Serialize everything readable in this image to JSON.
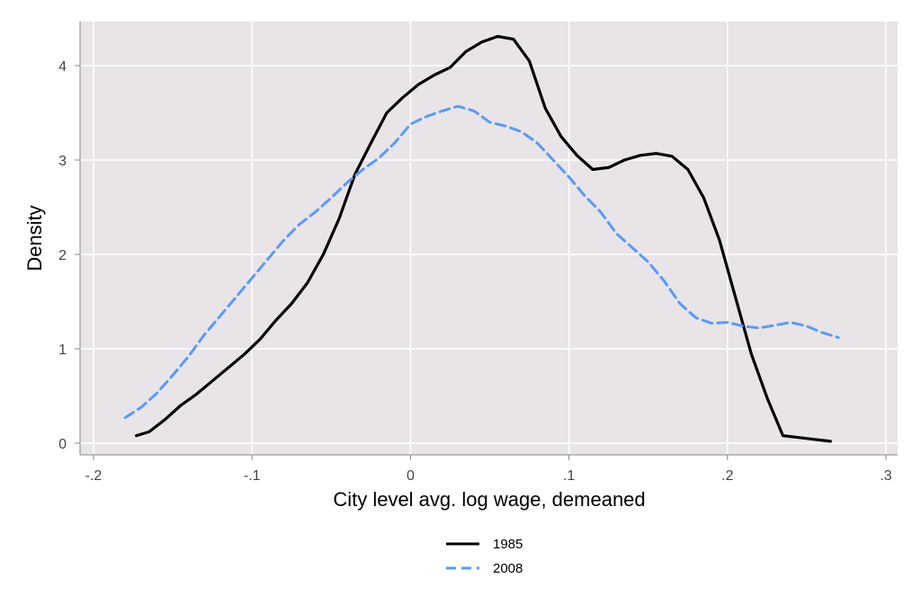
{
  "chart_data": {
    "type": "line",
    "title": "",
    "xlabel": "City level avg. log wage, demeaned",
    "ylabel": "Density",
    "xlim": [
      -0.2,
      0.3
    ],
    "ylim": [
      0,
      4.3
    ],
    "x_ticks": [
      -0.2,
      -0.1,
      0,
      0.1,
      0.2,
      0.3
    ],
    "x_tick_labels": [
      "-.2",
      "-.1",
      "0",
      ".1",
      ".2",
      ".3"
    ],
    "y_ticks": [
      0,
      1,
      2,
      3,
      4
    ],
    "y_tick_labels": [
      "0",
      "1",
      "2",
      "3",
      "4"
    ],
    "grid": true,
    "legend_position": "bottom",
    "plot_background": "#e8e4e8",
    "series": [
      {
        "name": "1985",
        "color": "#000000",
        "style": "solid",
        "points": [
          [
            -0.173,
            0.08
          ],
          [
            -0.165,
            0.12
          ],
          [
            -0.155,
            0.25
          ],
          [
            -0.145,
            0.4
          ],
          [
            -0.135,
            0.52
          ],
          [
            -0.125,
            0.66
          ],
          [
            -0.115,
            0.8
          ],
          [
            -0.105,
            0.94
          ],
          [
            -0.095,
            1.1
          ],
          [
            -0.085,
            1.3
          ],
          [
            -0.075,
            1.48
          ],
          [
            -0.065,
            1.7
          ],
          [
            -0.055,
            2.0
          ],
          [
            -0.045,
            2.38
          ],
          [
            -0.035,
            2.85
          ],
          [
            -0.025,
            3.18
          ],
          [
            -0.015,
            3.5
          ],
          [
            -0.005,
            3.66
          ],
          [
            0.005,
            3.8
          ],
          [
            0.015,
            3.9
          ],
          [
            0.025,
            3.98
          ],
          [
            0.035,
            4.15
          ],
          [
            0.045,
            4.25
          ],
          [
            0.055,
            4.31
          ],
          [
            0.065,
            4.28
          ],
          [
            0.075,
            4.05
          ],
          [
            0.085,
            3.55
          ],
          [
            0.095,
            3.25
          ],
          [
            0.105,
            3.05
          ],
          [
            0.115,
            2.9
          ],
          [
            0.125,
            2.92
          ],
          [
            0.135,
            3.0
          ],
          [
            0.145,
            3.05
          ],
          [
            0.155,
            3.07
          ],
          [
            0.165,
            3.04
          ],
          [
            0.175,
            2.9
          ],
          [
            0.185,
            2.6
          ],
          [
            0.195,
            2.15
          ],
          [
            0.205,
            1.55
          ],
          [
            0.215,
            0.95
          ],
          [
            0.225,
            0.48
          ],
          [
            0.235,
            0.08
          ],
          [
            0.245,
            0.06
          ],
          [
            0.255,
            0.04
          ],
          [
            0.265,
            0.02
          ]
        ]
      },
      {
        "name": "2008",
        "color": "#5b9bef",
        "style": "dashed",
        "points": [
          [
            -0.18,
            0.27
          ],
          [
            -0.17,
            0.38
          ],
          [
            -0.16,
            0.53
          ],
          [
            -0.15,
            0.72
          ],
          [
            -0.14,
            0.92
          ],
          [
            -0.13,
            1.15
          ],
          [
            -0.12,
            1.35
          ],
          [
            -0.11,
            1.55
          ],
          [
            -0.1,
            1.75
          ],
          [
            -0.09,
            1.95
          ],
          [
            -0.08,
            2.15
          ],
          [
            -0.07,
            2.32
          ],
          [
            -0.06,
            2.45
          ],
          [
            -0.05,
            2.6
          ],
          [
            -0.04,
            2.76
          ],
          [
            -0.03,
            2.9
          ],
          [
            -0.02,
            3.02
          ],
          [
            -0.01,
            3.18
          ],
          [
            0.0,
            3.38
          ],
          [
            0.01,
            3.46
          ],
          [
            0.02,
            3.52
          ],
          [
            0.03,
            3.57
          ],
          [
            0.04,
            3.52
          ],
          [
            0.05,
            3.4
          ],
          [
            0.06,
            3.36
          ],
          [
            0.07,
            3.3
          ],
          [
            0.08,
            3.18
          ],
          [
            0.09,
            3.0
          ],
          [
            0.1,
            2.82
          ],
          [
            0.11,
            2.62
          ],
          [
            0.12,
            2.45
          ],
          [
            0.13,
            2.22
          ],
          [
            0.14,
            2.07
          ],
          [
            0.15,
            1.92
          ],
          [
            0.16,
            1.72
          ],
          [
            0.17,
            1.48
          ],
          [
            0.18,
            1.33
          ],
          [
            0.19,
            1.27
          ],
          [
            0.2,
            1.28
          ],
          [
            0.21,
            1.24
          ],
          [
            0.22,
            1.22
          ],
          [
            0.23,
            1.25
          ],
          [
            0.24,
            1.28
          ],
          [
            0.25,
            1.24
          ],
          [
            0.26,
            1.17
          ],
          [
            0.27,
            1.12
          ]
        ]
      }
    ]
  }
}
